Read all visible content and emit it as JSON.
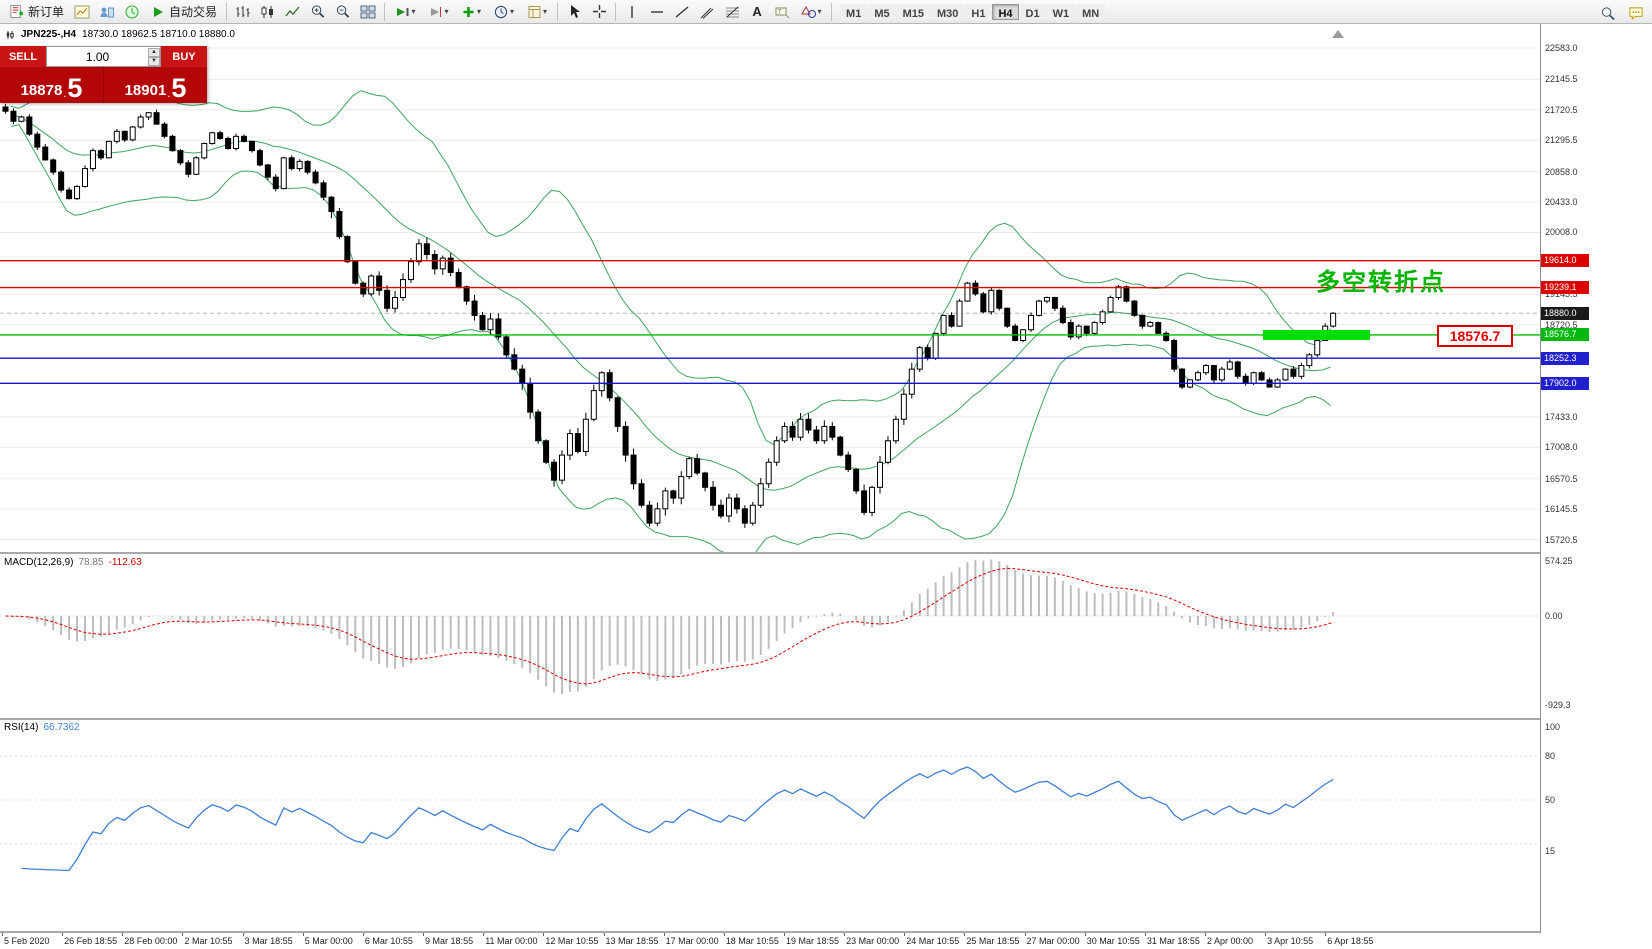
{
  "toolbar": {
    "new_order": "新订单",
    "auto_trading": "自动交易",
    "timeframes": [
      "M1",
      "M5",
      "M15",
      "M30",
      "H1",
      "H4",
      "D1",
      "W1",
      "MN"
    ],
    "active_timeframe": "H4"
  },
  "chart_header": {
    "title": "JPN225-,H4",
    "ohlc": "18730.0 18962.5 18710.0 18880.0"
  },
  "trade_panel": {
    "sell_label": "SELL",
    "buy_label": "BUY",
    "volume": "1.00",
    "bid_int": "18878",
    "bid_frac": "5",
    "ask_int": "18901",
    "ask_frac": "5"
  },
  "annotation": {
    "text": "多空转折点",
    "color": "#00b400"
  },
  "price_label_box": "18576.7",
  "price_axis": {
    "ticks": [
      "22583.0",
      "22145.5",
      "21720.5",
      "21295.5",
      "20858.0",
      "20433.0",
      "20008.0",
      "19145.5",
      "18720.5",
      "17433.0",
      "17008.0",
      "16570.5",
      "16145.5",
      "15720.5"
    ],
    "badges": [
      {
        "value": "19614.0",
        "price": 19614.0,
        "color": "#dd0000"
      },
      {
        "value": "19239.1",
        "price": 19239.1,
        "color": "#dd0000"
      },
      {
        "value": "18880.0",
        "price": 18880.0,
        "color": "#1a1a1a"
      },
      {
        "value": "18576.7",
        "price": 18576.7,
        "color": "#00b80e"
      },
      {
        "value": "18252.3",
        "price": 18252.3,
        "color": "#2020cc"
      },
      {
        "value": "17902.0",
        "price": 17902.0,
        "color": "#2020cc"
      }
    ]
  },
  "chart_data": {
    "type": "candlestick",
    "symbol": "JPN225-",
    "timeframe": "H4",
    "current": {
      "open": 18730.0,
      "high": 18962.5,
      "low": 18710.0,
      "close": 18880.0,
      "bid": 18878.5,
      "ask": 18901.5
    },
    "price_top": 22583.0,
    "price_bottom": 15720.5,
    "closes": [
      21700,
      21560,
      21620,
      21380,
      21200,
      21020,
      20850,
      20600,
      20480,
      20650,
      20900,
      21150,
      21050,
      21280,
      21420,
      21300,
      21480,
      21620,
      21680,
      21520,
      21350,
      21150,
      20980,
      20820,
      21050,
      21250,
      21400,
      21320,
      21180,
      21350,
      21280,
      21150,
      20950,
      20780,
      20620,
      21050,
      20900,
      21000,
      20850,
      20700,
      20500,
      20300,
      19950,
      19600,
      19300,
      19150,
      19400,
      19200,
      18950,
      19100,
      19350,
      19600,
      19850,
      19700,
      19500,
      19650,
      19450,
      19250,
      19050,
      18850,
      18650,
      18800,
      18550,
      18300,
      18100,
      17900,
      17500,
      17100,
      16800,
      16550,
      16900,
      17200,
      16950,
      17400,
      17800,
      18050,
      17700,
      17300,
      16900,
      16500,
      16200,
      15950,
      16150,
      16400,
      16300,
      16600,
      16850,
      16650,
      16450,
      16200,
      16050,
      16300,
      16150,
      15950,
      16200,
      16500,
      16800,
      17100,
      17300,
      17150,
      17400,
      17250,
      17100,
      17300,
      17150,
      16900,
      16700,
      16400,
      16100,
      16450,
      16800,
      17100,
      17400,
      17750,
      18100,
      18400,
      18250,
      18600,
      18850,
      18700,
      19050,
      19300,
      19150,
      18900,
      19200,
      18950,
      18700,
      18500,
      18650,
      18850,
      19050,
      19100,
      18950,
      18750,
      18550,
      18700,
      18600,
      18750,
      18900,
      19100,
      19250,
      19050,
      18850,
      18700,
      18750,
      18600,
      18500,
      18100,
      17850,
      17950,
      18050,
      18150,
      17950,
      18100,
      18200,
      18000,
      17900,
      18050,
      17950,
      17850,
      17950,
      18100,
      18000,
      18150,
      18300,
      18500,
      18700,
      18880
    ],
    "hlines": [
      {
        "price": 19614.0,
        "color": "#dd0000"
      },
      {
        "price": 19239.1,
        "color": "#dd0000"
      },
      {
        "price": 18576.7,
        "color": "#00c000"
      },
      {
        "price": 18252.3,
        "color": "#1515d0"
      },
      {
        "price": 17902.0,
        "color": "#1515d0"
      }
    ],
    "bid_line_price": 18880.0,
    "bollinger": {
      "period": 20,
      "deviation": 2,
      "color": "#3fa45f"
    },
    "macd": {
      "label": "MACD(12,26,9)",
      "value_main": "78.85",
      "value_signal": "-112.63",
      "fast": 12,
      "slow": 26,
      "signal": 9,
      "scale": [
        574.25,
        0.0,
        -929.3
      ],
      "histogram_color": "#bdbdbd",
      "signal_color": "#dd0000"
    },
    "rsi": {
      "label": "RSI(14)",
      "value": "66.7362",
      "period": 14,
      "scale": [
        100,
        80,
        50,
        15
      ],
      "levels": [
        80,
        50,
        20
      ],
      "color": "#3e7fd4"
    },
    "time_labels": [
      "5 Feb 2020",
      "26 Feb 18:55",
      "28 Feb 00:00",
      "2 Mar 10:55",
      "3 Mar 18:55",
      "5 Mar 00:00",
      "6 Mar 10:55",
      "9 Mar 18:55",
      "11 Mar 00:00",
      "12 Mar 10:55",
      "13 Mar 18:55",
      "17 Mar 00:00",
      "18 Mar 10:55",
      "19 Mar 18:55",
      "23 Mar 00:00",
      "24 Mar 10:55",
      "25 Mar 18:55",
      "27 Mar 00:00",
      "30 Mar 10:55",
      "31 Mar 18:55",
      "2 Apr 00:00",
      "3 Apr 10:55",
      "6 Apr 18:55"
    ]
  }
}
